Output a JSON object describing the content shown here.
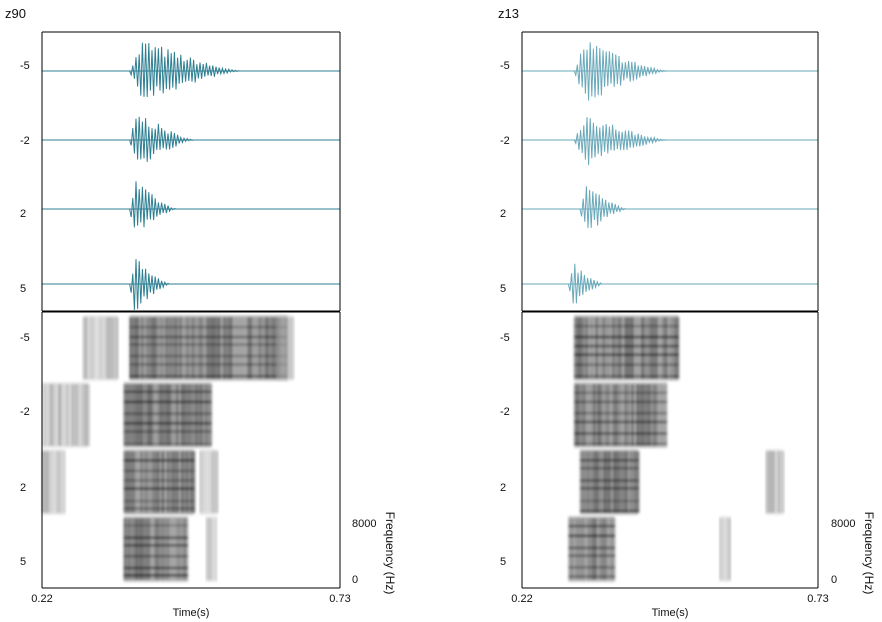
{
  "chart_data": [
    {
      "type": "composite",
      "title": "z90",
      "waveform_rows": [
        "-5",
        "-2",
        "2",
        "5"
      ],
      "spectrogram_rows": [
        "-5",
        "-2",
        "2",
        "5"
      ],
      "xlabel": "Time(s)",
      "xlim": [
        0.22,
        0.73
      ],
      "x_ticks": [
        "0.22",
        "0.73"
      ],
      "ylabel": "Frequency (Hz)",
      "ylim": [
        0,
        8000
      ],
      "y_ticks": [
        "8000",
        "0"
      ],
      "waveform_color": "#2f7f93",
      "waveforms": [
        {
          "label": "-5",
          "onset": 0.37,
          "offset": 0.56,
          "amplitude": 1.0
        },
        {
          "label": "-2",
          "onset": 0.37,
          "offset": 0.48,
          "amplitude": 0.9
        },
        {
          "label": "2",
          "onset": 0.37,
          "offset": 0.45,
          "amplitude": 0.9
        },
        {
          "label": "5",
          "onset": 0.37,
          "offset": 0.44,
          "amplitude": 0.85
        }
      ],
      "spectrograms": [
        {
          "label": "-5",
          "voiced": [
            [
              0.37,
              0.64
            ]
          ],
          "noise": [
            [
              0.29,
              0.35
            ],
            [
              0.62,
              0.65
            ]
          ]
        },
        {
          "label": "-2",
          "voiced": [
            [
              0.36,
              0.51
            ]
          ],
          "noise": [
            [
              0.22,
              0.25
            ],
            [
              0.25,
              0.3
            ]
          ]
        },
        {
          "label": "2",
          "voiced": [
            [
              0.36,
              0.48
            ]
          ],
          "noise": [
            [
              0.22,
              0.26
            ],
            [
              0.49,
              0.52
            ]
          ]
        },
        {
          "label": "5",
          "voiced": [
            [
              0.36,
              0.47
            ]
          ],
          "noise": [
            [
              0.5,
              0.52
            ]
          ]
        }
      ]
    },
    {
      "type": "composite",
      "title": "z13",
      "waveform_rows": [
        "-5",
        "-2",
        "2",
        "5"
      ],
      "spectrogram_rows": [
        "-5",
        "-2",
        "2",
        "5"
      ],
      "xlabel": "Time(s)",
      "xlim": [
        0.22,
        0.73
      ],
      "x_ticks": [
        "0.22",
        "0.73"
      ],
      "ylabel": "Frequency (Hz)",
      "ylim": [
        0,
        8000
      ],
      "y_ticks": [
        "8000",
        "0"
      ],
      "waveform_color": "#6aa9ba",
      "waveforms": [
        {
          "label": "-5",
          "onset": 0.31,
          "offset": 0.47,
          "amplitude": 1.0
        },
        {
          "label": "-2",
          "onset": 0.31,
          "offset": 0.47,
          "amplitude": 0.85
        },
        {
          "label": "2",
          "onset": 0.32,
          "offset": 0.4,
          "amplitude": 0.8
        },
        {
          "label": "5",
          "onset": 0.3,
          "offset": 0.36,
          "amplitude": 0.75
        }
      ],
      "spectrograms": [
        {
          "label": "-5",
          "voiced": [
            [
              0.31,
              0.49
            ]
          ],
          "noise": []
        },
        {
          "label": "-2",
          "voiced": [
            [
              0.31,
              0.47
            ]
          ],
          "noise": []
        },
        {
          "label": "2",
          "voiced": [
            [
              0.32,
              0.42
            ]
          ],
          "noise": [
            [
              0.64,
              0.67
            ]
          ]
        },
        {
          "label": "5",
          "voiced": [
            [
              0.3,
              0.38
            ]
          ],
          "noise": [
            [
              0.56,
              0.58
            ]
          ]
        }
      ]
    }
  ]
}
